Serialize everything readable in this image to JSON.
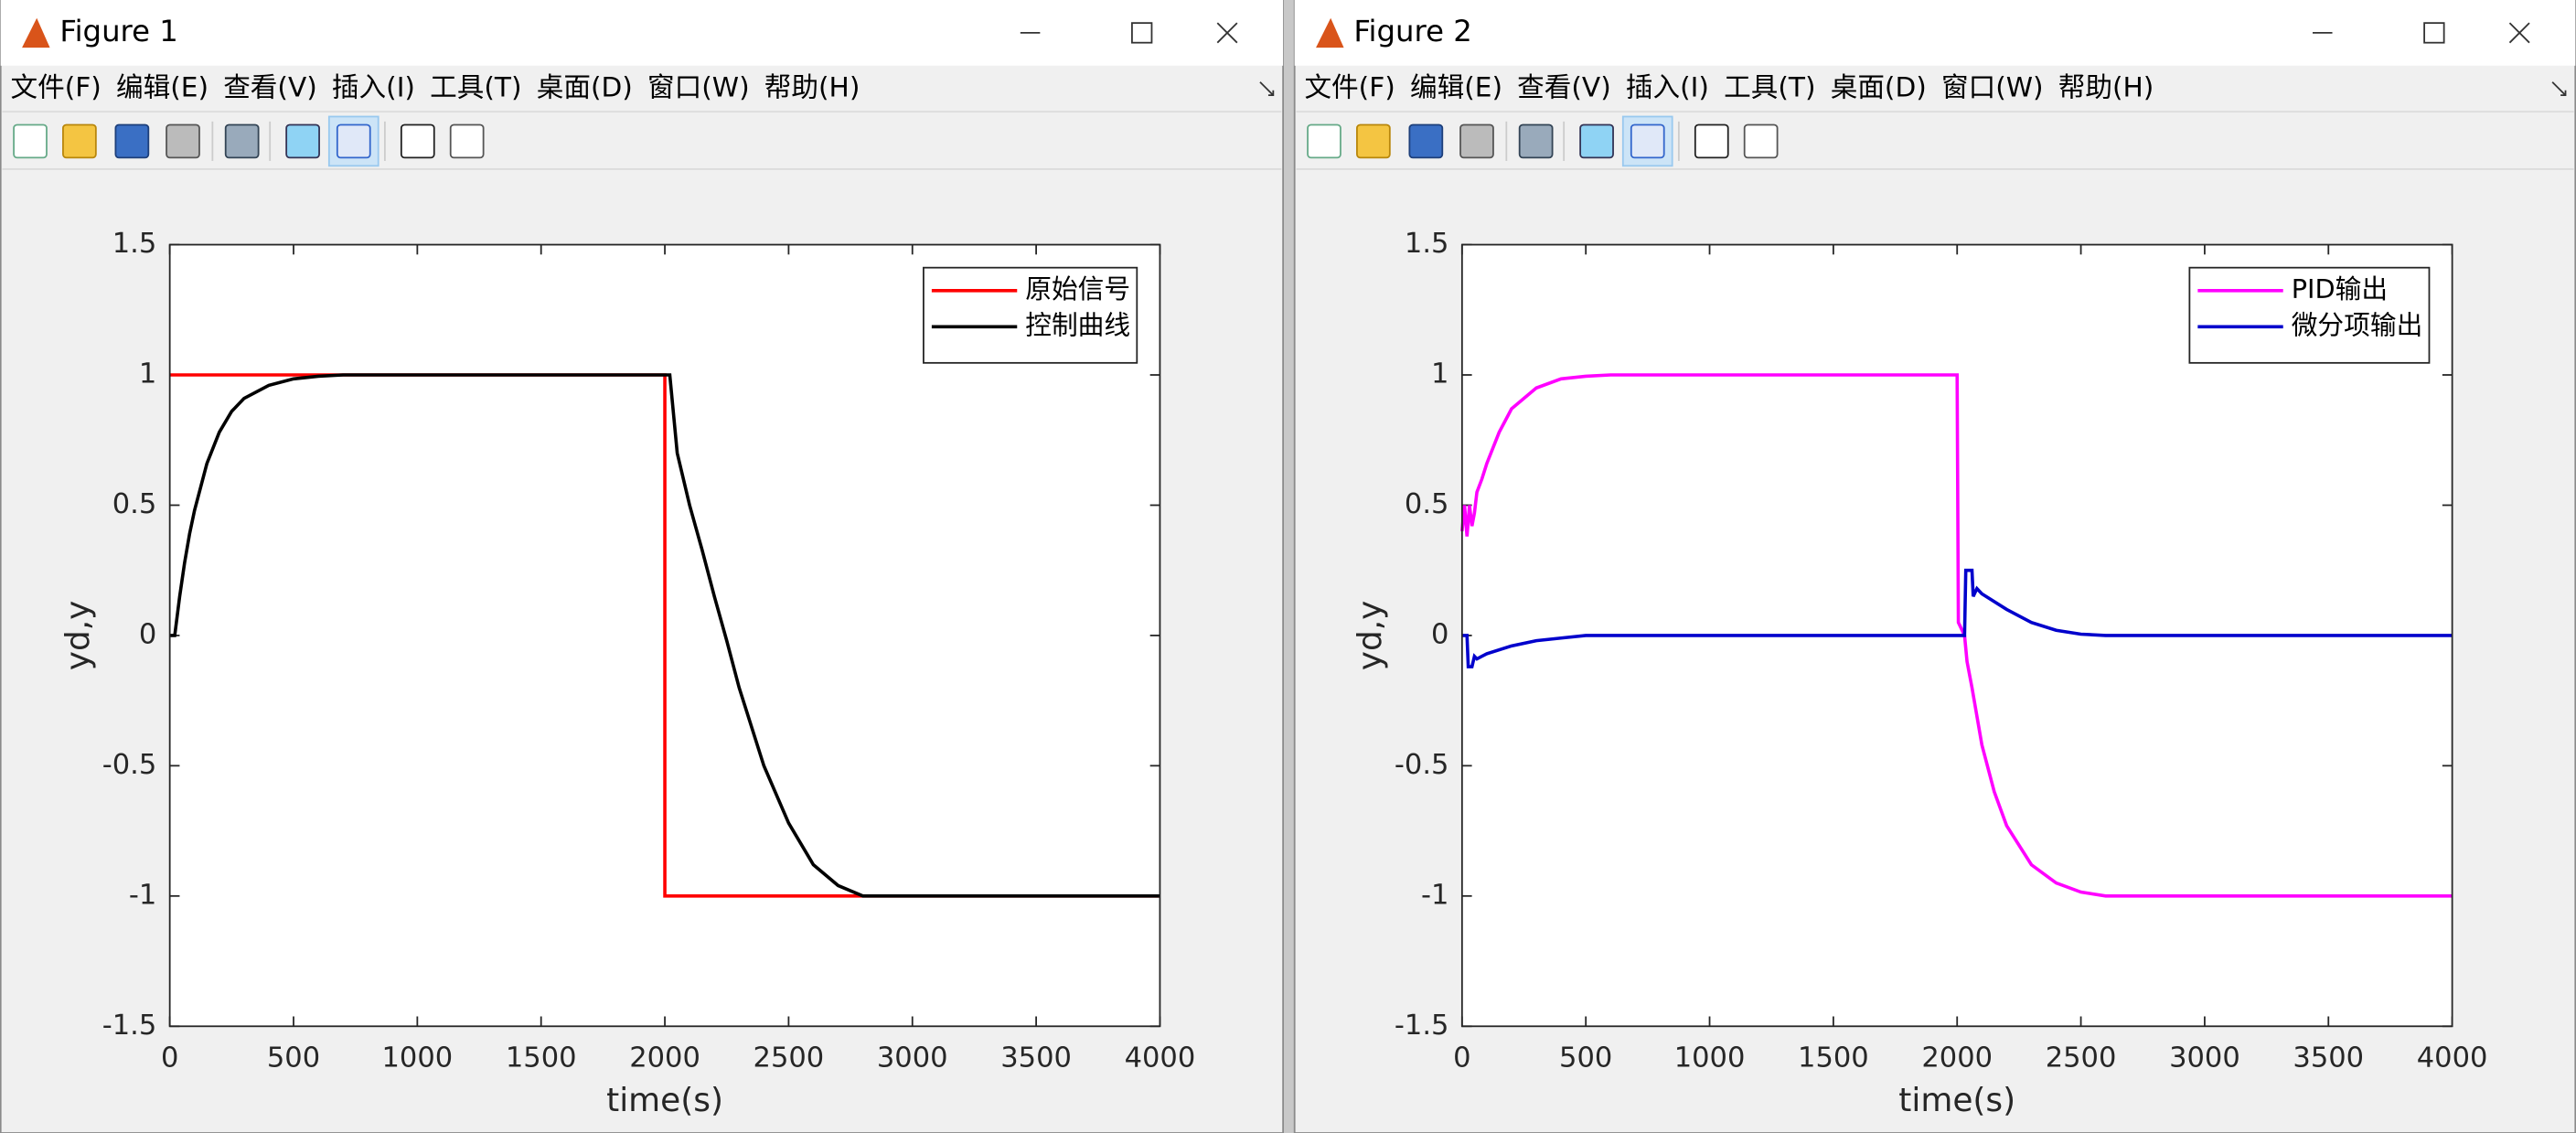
{
  "windows": [
    {
      "title": "Figure 1",
      "menu": [
        "文件(F)",
        "编辑(E)",
        "查看(V)",
        "插入(I)",
        "工具(T)",
        "桌面(D)",
        "窗口(W)",
        "帮助(H)"
      ]
    },
    {
      "title": "Figure 2",
      "menu": [
        "文件(F)",
        "编辑(E)",
        "查看(V)",
        "插入(I)",
        "工具(T)",
        "桌面(D)",
        "窗口(W)",
        "帮助(H)"
      ]
    }
  ],
  "chart_data": [
    {
      "type": "line",
      "xlabel": "time(s)",
      "ylabel": "yd,y",
      "legend": "northeast",
      "xlim": [
        0,
        4000
      ],
      "xticks": [
        0,
        500,
        1000,
        1500,
        2000,
        2500,
        3000,
        3500,
        4000
      ],
      "ylim": [
        -1.5,
        1.5
      ],
      "yticks": [
        -1.5,
        -1,
        -0.5,
        0,
        0.5,
        1,
        1.5
      ],
      "series": [
        {
          "name": "原始信号",
          "color": "#ff0000",
          "x": [
            0,
            2000,
            2000,
            4000
          ],
          "values": [
            1,
            1,
            -1,
            -1
          ]
        },
        {
          "name": "控制曲线",
          "color": "#000000",
          "x": [
            0,
            20,
            40,
            60,
            80,
            100,
            150,
            200,
            250,
            300,
            400,
            500,
            600,
            700,
            800,
            2000,
            2020,
            2030,
            2050,
            2100,
            2150,
            2200,
            2250,
            2300,
            2400,
            2500,
            2600,
            2700,
            2800,
            4000
          ],
          "values": [
            0,
            0,
            0.15,
            0.28,
            0.39,
            0.48,
            0.66,
            0.78,
            0.86,
            0.91,
            0.96,
            0.985,
            0.995,
            1,
            1,
            1,
            1,
            0.9,
            0.7,
            0.5,
            0.33,
            0.15,
            -0.02,
            -0.2,
            -0.5,
            -0.72,
            -0.88,
            -0.96,
            -1,
            -1
          ]
        }
      ]
    },
    {
      "type": "line",
      "xlabel": "time(s)",
      "ylabel": "yd,y",
      "legend": "northeast",
      "xlim": [
        0,
        4000
      ],
      "xticks": [
        0,
        500,
        1000,
        1500,
        2000,
        2500,
        3000,
        3500,
        4000
      ],
      "ylim": [
        -1.5,
        1.5
      ],
      "yticks": [
        -1.5,
        -1,
        -0.5,
        0,
        0.5,
        1,
        1.5
      ],
      "series": [
        {
          "name": "PID输出",
          "color": "#ff00ff",
          "x": [
            0,
            10,
            20,
            30,
            40,
            50,
            60,
            80,
            100,
            150,
            200,
            300,
            400,
            500,
            600,
            700,
            2000,
            2005,
            2020,
            2030,
            2040,
            2060,
            2100,
            2150,
            2200,
            2300,
            2400,
            2500,
            2600,
            2700,
            4000
          ],
          "values": [
            0.4,
            0.5,
            0.38,
            0.5,
            0.42,
            0.47,
            0.55,
            0.6,
            0.66,
            0.78,
            0.87,
            0.95,
            0.985,
            0.995,
            1,
            1,
            1,
            0.05,
            0.02,
            0,
            -0.1,
            -0.2,
            -0.42,
            -0.6,
            -0.73,
            -0.88,
            -0.95,
            -0.985,
            -1,
            -1,
            -1
          ]
        },
        {
          "name": "微分项输出",
          "color": "#0000cc",
          "x": [
            0,
            20,
            25,
            40,
            50,
            60,
            80,
            100,
            200,
            300,
            400,
            500,
            2000,
            2030,
            2035,
            2060,
            2065,
            2080,
            2100,
            2200,
            2300,
            2400,
            2500,
            2600,
            4000
          ],
          "values": [
            0,
            0,
            -0.12,
            -0.12,
            -0.08,
            -0.09,
            -0.08,
            -0.07,
            -0.04,
            -0.02,
            -0.01,
            0,
            0,
            0,
            0.25,
            0.25,
            0.15,
            0.18,
            0.16,
            0.1,
            0.05,
            0.02,
            0.005,
            0,
            0
          ]
        }
      ]
    }
  ]
}
